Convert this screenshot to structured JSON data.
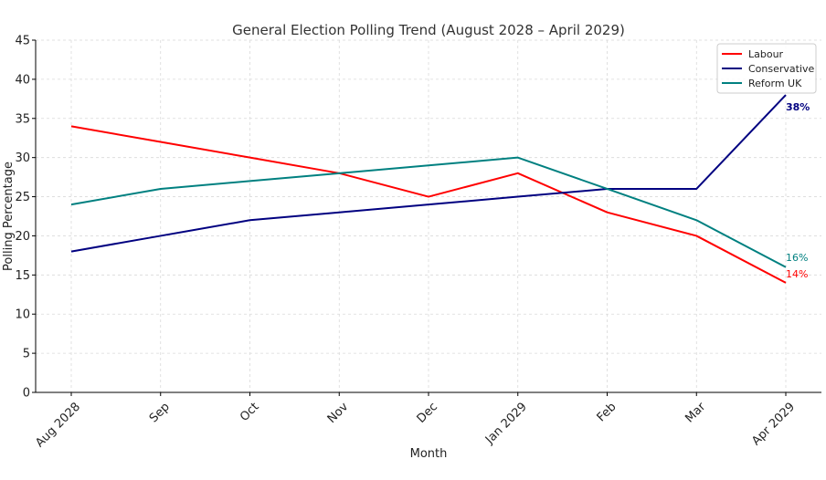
{
  "chart_data": {
    "type": "line",
    "title": "General Election Polling Trend (August 2028 – April 2029)",
    "xlabel": "Month",
    "ylabel": "Polling Percentage",
    "categories": [
      "Aug 2028",
      "Sep",
      "Oct",
      "Nov",
      "Dec",
      "Jan 2029",
      "Feb",
      "Mar",
      "Apr 2029"
    ],
    "ylim": [
      0,
      45
    ],
    "yticks": [
      0,
      5,
      10,
      15,
      20,
      25,
      30,
      35,
      40,
      45
    ],
    "grid": true,
    "legend_position": "top-right",
    "series": [
      {
        "name": "Labour",
        "color": "#ff0000",
        "values": [
          34,
          32,
          30,
          28,
          25,
          28,
          23,
          20,
          14
        ],
        "end_label": "14%",
        "end_label_bold": false
      },
      {
        "name": "Conservative",
        "color": "#000080",
        "values": [
          18,
          20,
          22,
          23,
          24,
          25,
          26,
          26,
          38
        ],
        "end_label": "38%",
        "end_label_bold": true
      },
      {
        "name": "Reform UK",
        "color": "#008080",
        "values": [
          24,
          26,
          27,
          28,
          29,
          30,
          26,
          22,
          16
        ],
        "end_label": "16%",
        "end_label_bold": false
      }
    ]
  }
}
